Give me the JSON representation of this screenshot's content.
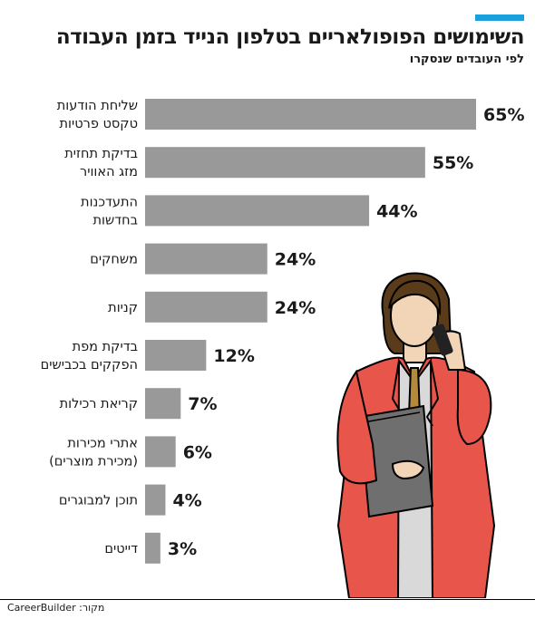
{
  "title": "השימושים הפופולאריים בטלפון הנייד בזמן העבודה",
  "subtitle": "לפי העובדים שנסקרו",
  "source": "מקור: CareerBuilder",
  "colors": {
    "bar": "#999999",
    "accent": "#1aa0dc",
    "jacket": "#e8554a"
  },
  "chart_data": {
    "type": "bar",
    "orientation": "horizontal",
    "categories": [
      [
        "שליחת הודעות",
        "טקסט פרטיות"
      ],
      [
        "בדיקת תחזית",
        "מזג האוויר"
      ],
      [
        "התעדכנות",
        "בחדשות"
      ],
      [
        "משחקים"
      ],
      [
        "קניות"
      ],
      [
        "בדיקת מפת",
        "הפקקים בכבישים"
      ],
      [
        "קריאת רכילות"
      ],
      [
        "אתרי מכירות",
        "(מכירת מוצרים)"
      ],
      [
        "תוכן למבוגרים"
      ],
      [
        "דייטים"
      ]
    ],
    "values": [
      65,
      55,
      44,
      24,
      24,
      12,
      7,
      6,
      4,
      3
    ],
    "value_labels": [
      "65%",
      "55%",
      "44%",
      "24%",
      "24%",
      "12%",
      "7%",
      "6%",
      "4%",
      "3%"
    ],
    "unit": "%",
    "xlim": [
      0,
      65
    ]
  }
}
